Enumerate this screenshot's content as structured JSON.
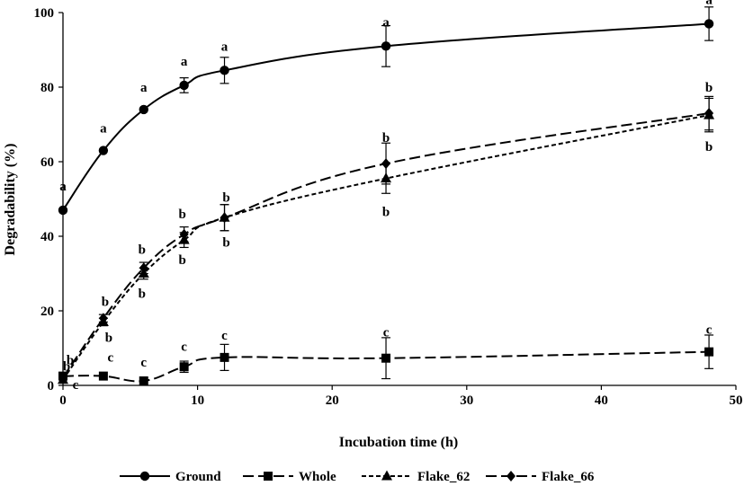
{
  "chart_data": {
    "type": "line",
    "xlabel": "Incubation time (h)",
    "ylabel": "Degradability (%)",
    "xlim": [
      0,
      50
    ],
    "ylim": [
      0,
      100
    ],
    "x_ticks": [
      0,
      10,
      20,
      30,
      40,
      50
    ],
    "y_ticks": [
      0,
      20,
      40,
      60,
      80,
      100
    ],
    "grid": false,
    "legend_position": "bottom",
    "series": [
      {
        "name": "Ground",
        "marker": "circle",
        "dash": "solid",
        "x": [
          0,
          3,
          6,
          9,
          12,
          24,
          48
        ],
        "y": [
          47,
          63,
          74,
          80.5,
          84.5,
          91,
          97
        ],
        "err": [
          0,
          0,
          0,
          2,
          3.5,
          5.5,
          4.5
        ],
        "letters": [
          "a",
          "a",
          "a",
          "a",
          "a",
          "a",
          "a"
        ]
      },
      {
        "name": "Whole",
        "marker": "square",
        "dash": "long",
        "x": [
          0,
          3,
          6,
          9,
          12,
          24,
          48
        ],
        "y": [
          2.5,
          2.5,
          1.2,
          5,
          7.5,
          7.3,
          9
        ],
        "err": [
          0,
          0,
          0,
          1.5,
          3.5,
          5.5,
          4.5
        ],
        "letters": [
          "b",
          "c",
          "c",
          "c",
          "c",
          "c",
          "c"
        ]
      },
      {
        "name": "Flake_62",
        "marker": "triangle",
        "dash": "short",
        "x": [
          0,
          3,
          6,
          9,
          12,
          24,
          48
        ],
        "y": [
          1.5,
          17,
          30,
          39,
          45,
          55.5,
          72.5
        ],
        "err": [
          0,
          1,
          1.5,
          2,
          3.5,
          4,
          4.5
        ],
        "letters": [
          "c",
          "b",
          "b",
          "b",
          "b",
          "b",
          "b"
        ]
      },
      {
        "name": "Flake_66",
        "marker": "diamond",
        "dash": "long",
        "x": [
          0,
          3,
          6,
          9,
          12,
          24,
          48
        ],
        "y": [
          2,
          18,
          31.5,
          40.5,
          45,
          59.5,
          73
        ],
        "err": [
          0,
          1,
          1.5,
          2,
          3.5,
          5.5,
          4.5
        ],
        "letters": [
          "b",
          "b",
          "b",
          "b",
          "b",
          "b",
          "b"
        ]
      }
    ]
  }
}
